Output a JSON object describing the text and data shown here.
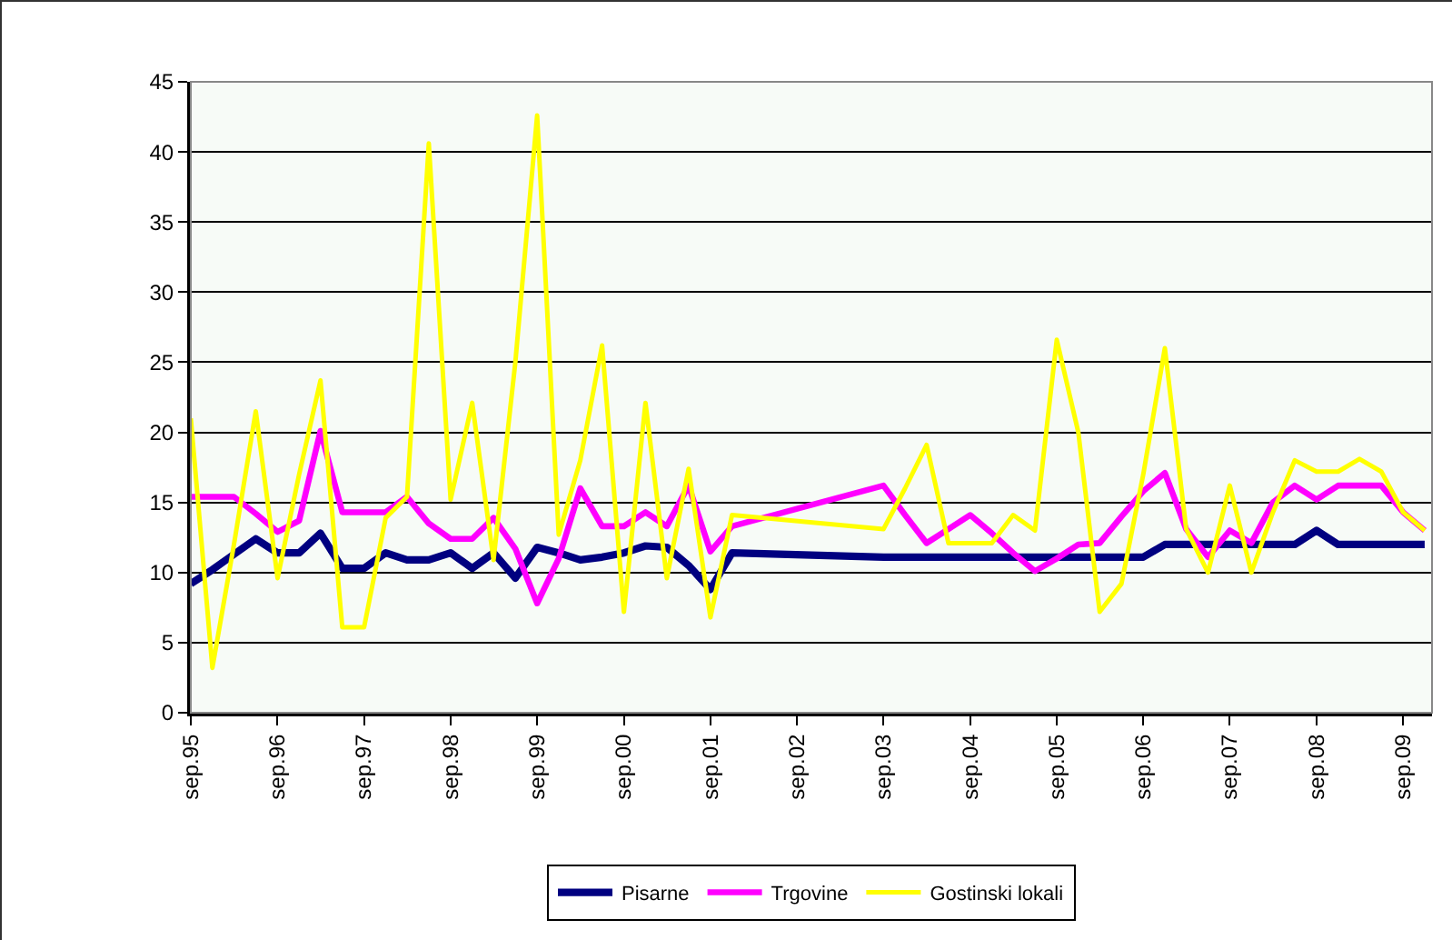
{
  "chart_data": {
    "type": "line",
    "x": [
      "1995-09",
      "1995-12",
      "1996-03",
      "1996-06",
      "1996-09",
      "1996-12",
      "1997-03",
      "1997-06",
      "1997-09",
      "1997-12",
      "1998-03",
      "1998-06",
      "1998-09",
      "1998-12",
      "1999-03",
      "1999-06",
      "1999-09",
      "1999-12",
      "2000-03",
      "2000-06",
      "2000-09",
      "2000-12",
      "2001-03",
      "2001-06",
      "2001-09",
      "2001-12",
      "2003-09",
      "2003-12",
      "2004-03",
      "2004-06",
      "2004-09",
      "2004-12",
      "2005-03",
      "2005-06",
      "2005-09",
      "2005-12",
      "2006-03",
      "2006-06",
      "2006-09",
      "2006-12",
      "2007-03",
      "2007-06",
      "2007-09",
      "2007-12",
      "2008-03",
      "2008-06",
      "2008-09",
      "2008-12",
      "2009-03",
      "2009-06",
      "2009-09",
      "2009-12"
    ],
    "series": [
      {
        "name": "Pisarne",
        "color": "#000080",
        "values": [
          9.2,
          10.2,
          11.3,
          12.4,
          11.4,
          11.4,
          12.8,
          10.3,
          10.3,
          11.4,
          10.9,
          10.9,
          11.4,
          10.3,
          11.4,
          9.6,
          11.8,
          11.4,
          10.9,
          11.1,
          11.4,
          11.9,
          11.8,
          10.5,
          8.8,
          11.4,
          11.1,
          11.1,
          11.1,
          11.1,
          11.1,
          11.1,
          11.1,
          11.1,
          11.1,
          11.1,
          11.1,
          11.1,
          11.1,
          12,
          12,
          12,
          12,
          12,
          12,
          12,
          13,
          12,
          12,
          12,
          12,
          12
        ]
      },
      {
        "name": "Trgovine",
        "color": "#ff00ff",
        "values": [
          15.4,
          15.4,
          15.4,
          14.2,
          12.9,
          13.7,
          20.1,
          14.3,
          14.3,
          14.3,
          15.4,
          13.5,
          12.4,
          12.4,
          13.9,
          11.7,
          7.8,
          11,
          16,
          13.3,
          13.3,
          14.3,
          13.3,
          16.2,
          11.5,
          13.3,
          16.2,
          14.1,
          12.1,
          13.1,
          14.1,
          12.8,
          11.4,
          10.1,
          11,
          12,
          12.1,
          14,
          15.8,
          17.1,
          13.1,
          11.1,
          13,
          12.1,
          15,
          16.2,
          15.2,
          16.2,
          16.2,
          16.2,
          14.3,
          13
        ]
      },
      {
        "name": "Gostinski lokali",
        "color": "#ffff00",
        "values": [
          21,
          3.2,
          12,
          21.5,
          9.6,
          17,
          23.7,
          6.1,
          6.1,
          13.9,
          15.4,
          40.6,
          15.2,
          22.1,
          10.9,
          25,
          42.6,
          12.7,
          18,
          26.2,
          7.2,
          22.1,
          9.6,
          17.4,
          6.8,
          14.1,
          13.1,
          16,
          19.1,
          12.1,
          12.1,
          12.1,
          14.1,
          13,
          26.6,
          20,
          7.2,
          9.2,
          17,
          26,
          13.1,
          10,
          16.2,
          10,
          14.3,
          18,
          17.2,
          17.2,
          18.1,
          17.2,
          14.3,
          13
        ]
      }
    ],
    "xlim": [
      "1995-09",
      "2010-01"
    ],
    "xticks": [
      {
        "value": "1995-09",
        "label": "sep.95"
      },
      {
        "value": "1996-09",
        "label": "sep.96"
      },
      {
        "value": "1997-09",
        "label": "sep.97"
      },
      {
        "value": "1998-09",
        "label": "sep.98"
      },
      {
        "value": "1999-09",
        "label": "sep.99"
      },
      {
        "value": "2000-09",
        "label": "sep.00"
      },
      {
        "value": "2001-09",
        "label": "sep.01"
      },
      {
        "value": "2002-09",
        "label": "sep.02"
      },
      {
        "value": "2003-09",
        "label": "sep.03"
      },
      {
        "value": "2004-09",
        "label": "sep.04"
      },
      {
        "value": "2005-09",
        "label": "sep.05"
      },
      {
        "value": "2006-09",
        "label": "sep.06"
      },
      {
        "value": "2007-09",
        "label": "sep.07"
      },
      {
        "value": "2008-09",
        "label": "sep.08"
      },
      {
        "value": "2009-09",
        "label": "sep.09"
      }
    ],
    "ylim": [
      0,
      45
    ],
    "yticks": [
      0,
      5,
      10,
      15,
      20,
      25,
      30,
      35,
      40,
      45
    ],
    "grid": "y",
    "legend": "bottom",
    "marker": "none",
    "line_style": "solid"
  }
}
